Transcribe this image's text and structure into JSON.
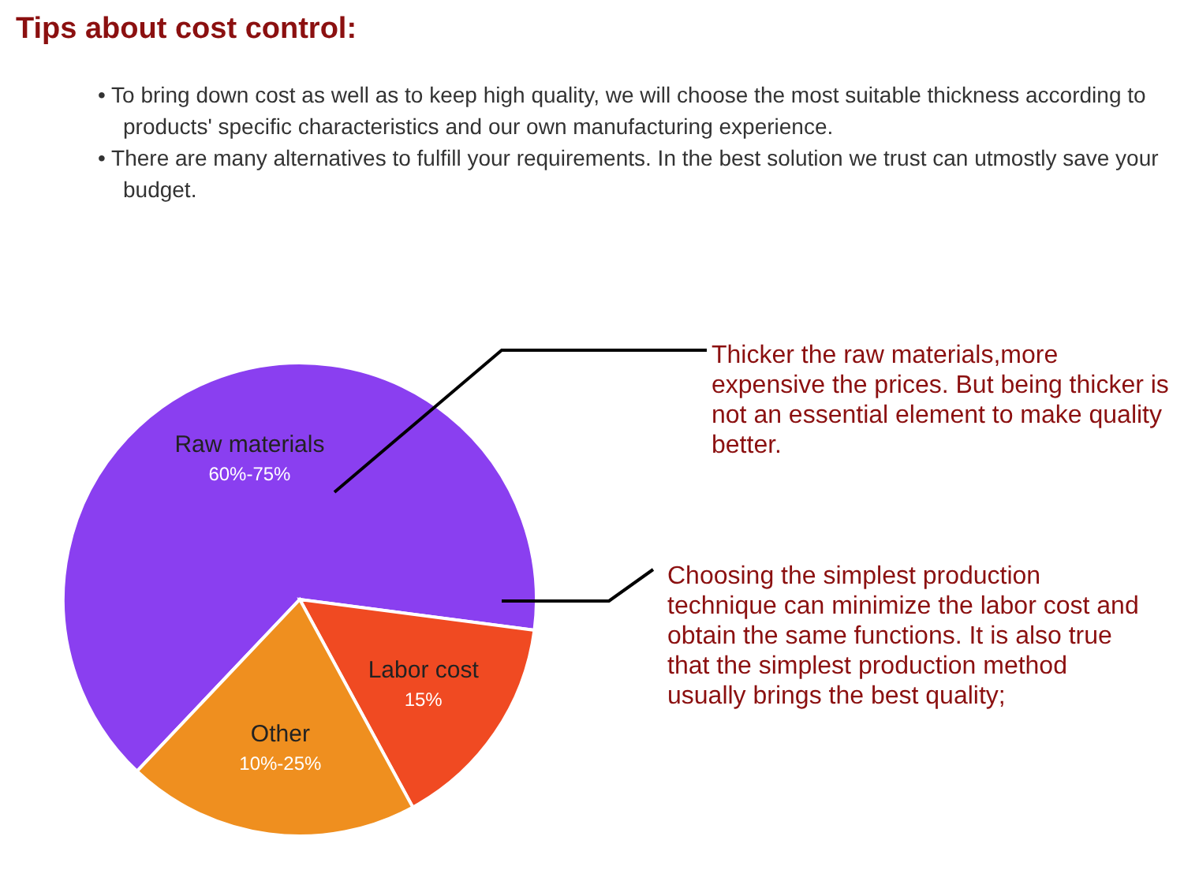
{
  "chart_data": {
    "type": "pie",
    "title": "Tips about cost control:",
    "categories": [
      "Raw materials",
      "Labor cost",
      "Other"
    ],
    "values": [
      65,
      15,
      20
    ],
    "value_labels": [
      null,
      "15%",
      null
    ],
    "colors": [
      "#8a3ff0",
      "#f04a22",
      "#ef8f1f"
    ],
    "legend": false,
    "annotations": [
      "• To bring down cost as well as to keep high quality, we will choose the most suitable thickness according to products' specific characteristics and our own manufacturing experience.",
      "• There are many alternatives to fulfill your requirements. In the best solution we trust can utmostly save your budget.",
      "Thicker the raw materials,more expensive the prices. But being thicker is not an essential element to make quality better.",
      "Choosing the simplest production technique can minimize the labor cost and obtain the same functions. It is also true that the simplest production method usually brings the best quality;",
      {
        "text": "60%-75%",
        "x": "Raw materials"
      },
      {
        "text": "10%-25%",
        "x": "Other"
      }
    ]
  }
}
